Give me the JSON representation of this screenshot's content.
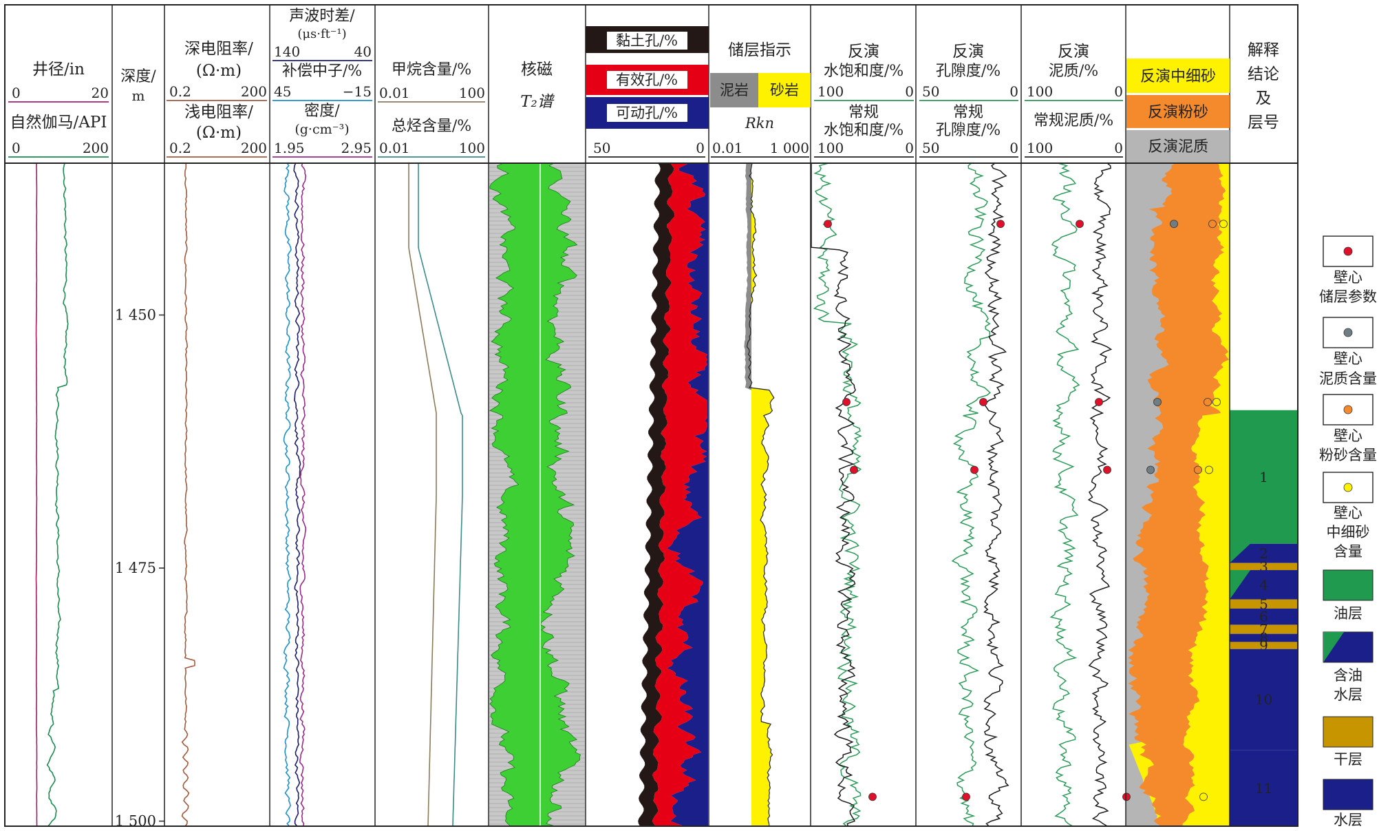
{
  "chart_data": {
    "type": "line",
    "depth_ticks": [
      "1 450",
      "1 475",
      "1 500"
    ],
    "depth_range": [
      1435,
      1500.5
    ],
    "tracks": [
      {
        "id": "caliper",
        "header": {
          "t1": "井径/in",
          "s1_lo": "0",
          "s1_hi": "20",
          "t2": "自然伽马/API",
          "s2_lo": "0",
          "s2_hi": "200"
        }
      },
      {
        "id": "depth",
        "header": {
          "t1": "深度/",
          "t2": "m"
        }
      },
      {
        "id": "resist",
        "header": {
          "t1": "深电阻率/",
          "t2": "(Ω·m)",
          "s1_lo": "0.2",
          "s1_hi": "200",
          "t3": "浅电阻率/",
          "t4": "(Ω·m)",
          "s2_lo": "0.2",
          "s2_hi": "200"
        }
      },
      {
        "id": "porosity",
        "header": {
          "t1": "声波时差/",
          "t2": "(μs·ft⁻¹)",
          "s1_lo": "140",
          "s1_hi": "40",
          "t3": "补偿中子/%",
          "s2_lo": "45",
          "s2_hi": "−15",
          "t4": "密度/",
          "t5": "(g·cm⁻³)",
          "s3_lo": "1.95",
          "s3_hi": "2.95"
        }
      },
      {
        "id": "gas",
        "header": {
          "t1": "甲烷含量/%",
          "s1_lo": "0.01",
          "s1_hi": "100",
          "t2": "总烃含量/%",
          "s2_lo": "0.01",
          "s2_hi": "100"
        }
      },
      {
        "id": "nmr",
        "header": {
          "t1": "核磁",
          "t2": "T₂谱"
        }
      },
      {
        "id": "pores",
        "header": {
          "t1": "黏土孔/%",
          "t2": "有效孔/%",
          "t3": "可动孔/%",
          "s_lo": "50",
          "s_hi": "0"
        }
      },
      {
        "id": "rkn",
        "header": {
          "t1": "储层指示",
          "t2": "泥岩",
          "t3": "砂岩",
          "t4": "Rkn",
          "s_lo": "0.01",
          "s_hi": "1 000"
        }
      },
      {
        "id": "sw",
        "header": {
          "t1": "反演",
          "t2": "水饱和度/%",
          "s1_lo": "100",
          "s1_hi": "0",
          "t3": "常规",
          "t4": "水饱和度/%",
          "s2_lo": "100",
          "s2_hi": "0"
        }
      },
      {
        "id": "phi",
        "header": {
          "t1": "反演",
          "t2": "孔隙度/%",
          "s1_lo": "50",
          "s1_hi": "0",
          "t3": "常规",
          "t4": "孔隙度/%",
          "s2_lo": "50",
          "s2_hi": "0"
        }
      },
      {
        "id": "vsh",
        "header": {
          "t1": "反演",
          "t2": "泥质/%",
          "s1_lo": "100",
          "s1_hi": "0",
          "t3": "常规泥质/%",
          "s2_lo": "100",
          "s2_hi": "0"
        }
      },
      {
        "id": "litho",
        "header": {
          "t1": "反演中细砂",
          "t2": "反演粉砂",
          "t3": "反演泥质"
        }
      },
      {
        "id": "interp",
        "header": {
          "t1": "解释",
          "t2": "结论",
          "t3": "及",
          "t4": "层号"
        }
      }
    ],
    "layers": [
      {
        "no": "1",
        "type": "oil",
        "top": 1459.4,
        "bottom": 1472.6
      },
      {
        "no": "2",
        "type": "water-oil",
        "top": 1472.6,
        "bottom": 1474.5
      },
      {
        "no": "3",
        "type": "dry",
        "top": 1474.5,
        "bottom": 1475.2
      },
      {
        "no": "4",
        "type": "water-oil",
        "top": 1475.2,
        "bottom": 1478.1
      },
      {
        "no": "5",
        "type": "dry",
        "top": 1478.1,
        "bottom": 1479.0
      },
      {
        "no": "6",
        "type": "water",
        "top": 1479.0,
        "bottom": 1480.6
      },
      {
        "no": "7",
        "type": "dry",
        "top": 1480.6,
        "bottom": 1481.5
      },
      {
        "no": "8",
        "type": "water",
        "top": 1481.5,
        "bottom": 1482.3
      },
      {
        "no": "9",
        "type": "dry",
        "top": 1482.3,
        "bottom": 1483.0
      },
      {
        "no": "10",
        "type": "water",
        "top": 1483.0,
        "bottom": 1493.0
      },
      {
        "no": "11",
        "type": "water",
        "top": 1493.0,
        "bottom": 1500.5
      }
    ],
    "core_samples": {
      "sw": [
        1441.0,
        1458.6,
        1465.3,
        1497.6
      ],
      "phi": [
        1441.0,
        1458.6,
        1465.3,
        1497.6
      ],
      "vsh": [
        1441.0,
        1458.6,
        1465.3,
        1497.6
      ],
      "litho_mud": [
        1441.0,
        1458.6,
        1465.3
      ],
      "litho_silt": [
        1441.0,
        1458.6,
        1465.3
      ],
      "litho_sand": [
        1441.0,
        1458.6,
        1465.3,
        1497.6
      ]
    },
    "legend": [
      {
        "label": "壁心\n储层参数",
        "kind": "dot",
        "color": "#e0102a"
      },
      {
        "label": "壁心\n泥质含量",
        "kind": "dot",
        "color": "#6e7e84"
      },
      {
        "label": "壁心\n粉砂含量",
        "kind": "dot",
        "color": "#f58a2c"
      },
      {
        "label": "壁心\n中细砂\n含量",
        "kind": "dot",
        "color": "#fff200"
      },
      {
        "label": "油层",
        "kind": "box",
        "color": "#1f9a4e"
      },
      {
        "label": "含油\n水层",
        "kind": "diag",
        "color": "#1f9a4e",
        "color2": "#1b1f8a"
      },
      {
        "label": "干层",
        "kind": "box",
        "color": "#c79500"
      },
      {
        "label": "水层",
        "kind": "box",
        "color": "#1b1f8a"
      }
    ],
    "colors": {
      "caliper": "#a0206a",
      "gr": "#1a8a4e",
      "deep_res": "#a05a3c",
      "shallow_res": "#a05a3c",
      "ac": "#1b1b6a",
      "cnl": "#1e8fc9",
      "den": "#9a2a8a",
      "methane": "#8a7a5a",
      "total_hc": "#3a8a8a",
      "clay": "#231815",
      "effective": "#e50016",
      "movable": "#1b1f8a",
      "mud": "#8c8c8c",
      "sand": "#fff200",
      "silt": "#f58a2c",
      "mud_bg": "#b5b5b5",
      "oil": "#1f9a4e",
      "water": "#1b1f8a",
      "dry": "#c79500"
    }
  }
}
